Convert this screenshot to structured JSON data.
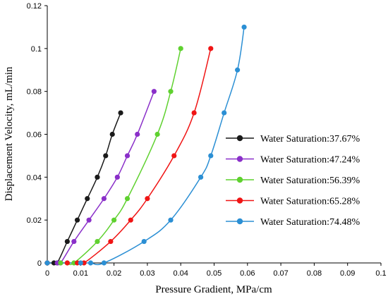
{
  "chart_data": {
    "type": "line",
    "xlabel": "Pressure Gradient, MPa/cm",
    "ylabel": "Displacement Velocity, mL/min",
    "xlim": [
      0,
      0.1
    ],
    "ylim": [
      0,
      0.12
    ],
    "x_ticks": [
      "0",
      "0.01",
      "0.02",
      "0.03",
      "0.04",
      "0.05",
      "0.06",
      "0.07",
      "0.08",
      "0.09",
      "0.1"
    ],
    "y_ticks": [
      "0",
      "0.02",
      "0.04",
      "0.06",
      "0.08",
      "0.1",
      "0.12"
    ],
    "grid": false,
    "legend_position": "right",
    "series": [
      {
        "name": "Water Saturation:37.67%",
        "color": "#1a1a1a",
        "points": [
          [
            0,
            0
          ],
          [
            0.002,
            0
          ],
          [
            0.003,
            0
          ],
          [
            0.006,
            0.01
          ],
          [
            0.009,
            0.02
          ],
          [
            0.012,
            0.03
          ],
          [
            0.015,
            0.04
          ],
          [
            0.0175,
            0.05
          ],
          [
            0.0195,
            0.06
          ],
          [
            0.022,
            0.07
          ]
        ]
      },
      {
        "name": "Water Saturation:47.24%",
        "color": "#8a2fc9",
        "points": [
          [
            0,
            0
          ],
          [
            0.003,
            0
          ],
          [
            0.004,
            0
          ],
          [
            0.008,
            0.01
          ],
          [
            0.0125,
            0.02
          ],
          [
            0.017,
            0.03
          ],
          [
            0.021,
            0.04
          ],
          [
            0.024,
            0.05
          ],
          [
            0.027,
            0.06
          ],
          [
            0.032,
            0.08
          ]
        ]
      },
      {
        "name": "Water Saturation:56.39%",
        "color": "#5fd12f",
        "points": [
          [
            0,
            0
          ],
          [
            0.004,
            0
          ],
          [
            0.006,
            0
          ],
          [
            0.008,
            0
          ],
          [
            0.015,
            0.01
          ],
          [
            0.02,
            0.02
          ],
          [
            0.024,
            0.03
          ],
          [
            0.033,
            0.06
          ],
          [
            0.037,
            0.08
          ],
          [
            0.04,
            0.1
          ]
        ]
      },
      {
        "name": "Water Saturation:65.28%",
        "color": "#f01414",
        "points": [
          [
            0,
            0
          ],
          [
            0.006,
            0
          ],
          [
            0.009,
            0
          ],
          [
            0.011,
            0
          ],
          [
            0.019,
            0.01
          ],
          [
            0.025,
            0.02
          ],
          [
            0.03,
            0.03
          ],
          [
            0.038,
            0.05
          ],
          [
            0.044,
            0.07
          ],
          [
            0.049,
            0.1
          ]
        ]
      },
      {
        "name": "Water Saturation:74.48%",
        "color": "#2b8fd4",
        "points": [
          [
            0,
            0
          ],
          [
            0.01,
            0
          ],
          [
            0.013,
            0
          ],
          [
            0.017,
            0
          ],
          [
            0.029,
            0.01
          ],
          [
            0.037,
            0.02
          ],
          [
            0.046,
            0.04
          ],
          [
            0.049,
            0.05
          ],
          [
            0.053,
            0.07
          ],
          [
            0.057,
            0.09
          ],
          [
            0.059,
            0.11
          ]
        ]
      }
    ]
  }
}
